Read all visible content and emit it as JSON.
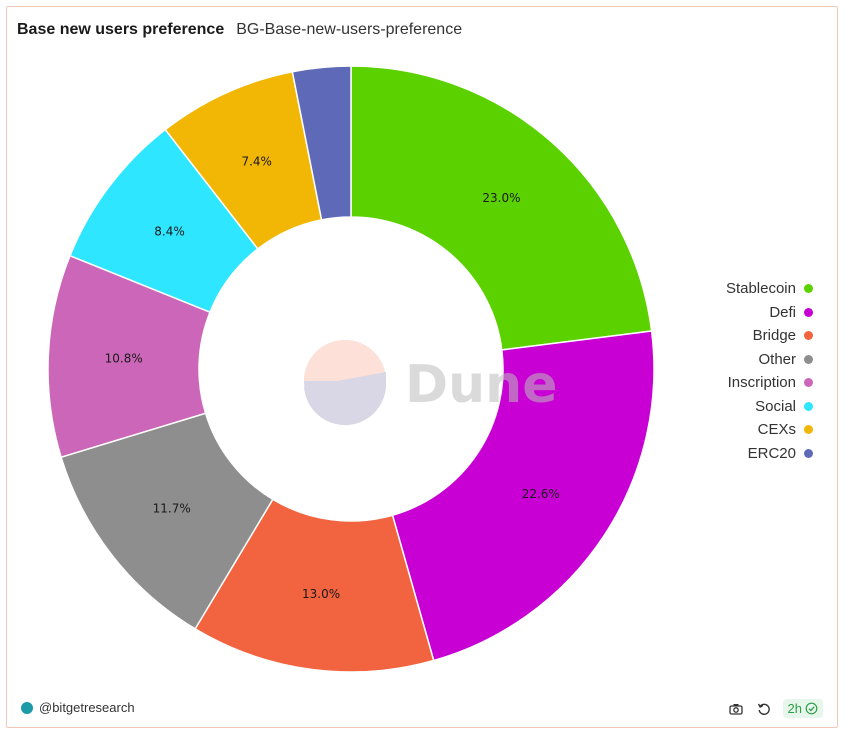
{
  "header": {
    "title": "Base new users preference",
    "subtitle": "BG-Base-new-users-preference"
  },
  "chart_data": {
    "type": "pie",
    "donut": true,
    "slices": [
      {
        "label": "Stablecoin",
        "value": 23.0,
        "color": "#5bd100",
        "display": "23.0%"
      },
      {
        "label": "Defi",
        "value": 22.6,
        "color": "#c800d4",
        "display": "22.6%"
      },
      {
        "label": "Bridge",
        "value": 13.0,
        "color": "#f26440",
        "display": "13.0%"
      },
      {
        "label": "Other",
        "value": 11.7,
        "color": "#8e8e8e",
        "display": "11.7%"
      },
      {
        "label": "Inscription",
        "value": 10.8,
        "color": "#cc66b8",
        "display": "10.8%"
      },
      {
        "label": "Social",
        "value": 8.4,
        "color": "#2ee6ff",
        "display": "8.4%"
      },
      {
        "label": "CEXs",
        "value": 7.4,
        "color": "#f2b705",
        "display": "7.4%"
      },
      {
        "label": "ERC20",
        "value": 3.1,
        "color": "#5e6ab8",
        "display": ""
      }
    ],
    "legend_position": "right"
  },
  "watermark": {
    "text": "Dune"
  },
  "footer": {
    "author": "@bitgetresearch",
    "refresh_age": "2h",
    "camera_icon": "camera-icon",
    "refresh_icon": "refresh-icon",
    "check_icon": "check-circle-icon"
  }
}
